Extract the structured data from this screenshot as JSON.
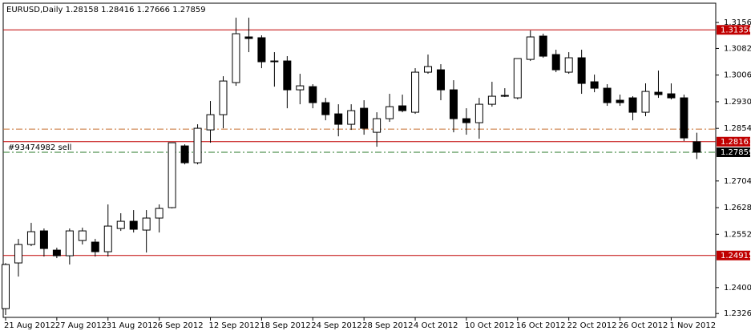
{
  "chart_data": {
    "type": "candlestick",
    "title": "EURUSD,Daily  1.28158 1.28416 1.27666 1.27859",
    "categories": [
      "21 Aug 2012",
      null,
      null,
      null,
      "27 Aug 2012",
      null,
      null,
      null,
      "31 Aug 2012",
      null,
      null,
      null,
      "6 Sep 2012",
      null,
      null,
      null,
      "12 Sep 2012",
      null,
      null,
      null,
      "18 Sep 2012",
      null,
      null,
      null,
      "24 Sep 2012",
      null,
      null,
      null,
      "28 Sep 2012",
      null,
      null,
      null,
      "4 Oct 2012",
      null,
      null,
      null,
      "10 Oct 2012",
      null,
      null,
      null,
      "16 Oct 2012",
      null,
      null,
      null,
      "22 Oct 2012",
      null,
      null,
      null,
      "26 Oct 2012",
      null,
      null,
      null,
      "1 Nov 2012",
      null,
      null
    ],
    "open": [
      1.234,
      1.24703,
      1.25228,
      1.25617,
      1.25068,
      1.24908,
      1.25342,
      1.25297,
      1.25023,
      1.25685,
      1.25891,
      1.2564,
      1.25983,
      1.2628,
      1.2804,
      1.2756,
      1.28497,
      1.28931,
      1.29846,
      1.31149,
      1.31126,
      1.30463,
      1.30463,
      1.2964,
      1.29731,
      1.29274,
      1.28954,
      1.28657,
      1.29114,
      1.28428,
      1.28817,
      1.29183,
      1.29,
      1.30143,
      1.30211,
      1.2964,
      1.28817,
      1.28703,
      1.29228,
      1.29457,
      1.29411,
      1.30508,
      1.31172,
      1.30646,
      1.30143,
      1.30554,
      1.29869,
      1.29686,
      1.29343,
      1.29411,
      1.29,
      1.29571,
      1.29526,
      1.29411,
      1.28158
    ],
    "high": [
      1.247,
      1.25388,
      1.25846,
      1.25685,
      1.25137,
      1.25685,
      1.25708,
      1.25388,
      1.26371,
      1.2612,
      1.26211,
      1.26211,
      1.26371,
      1.28131,
      1.28085,
      1.28657,
      1.2932,
      1.30028,
      1.31697,
      1.31697,
      1.31194,
      1.30714,
      1.306,
      1.30097,
      1.298,
      1.29411,
      1.29228,
      1.29228,
      1.29343,
      1.29,
      1.29526,
      1.29503,
      1.30257,
      1.30646,
      1.30371,
      1.29914,
      1.29114,
      1.29411,
      1.29869,
      1.29686,
      1.30531,
      1.31331,
      1.3124,
      1.30783,
      1.30714,
      1.30783,
      1.30074,
      1.298,
      1.29503,
      1.29457,
      1.29823,
      1.30189,
      1.29823,
      1.29503,
      1.28416
    ],
    "low": [
      1.2322,
      1.24314,
      1.25183,
      1.24885,
      1.2484,
      1.24657,
      1.25228,
      1.24885,
      1.24885,
      1.25617,
      1.25571,
      1.25,
      1.25571,
      1.26257,
      1.27514,
      1.27514,
      1.28131,
      1.28543,
      1.29754,
      1.30714,
      1.30257,
      1.29731,
      1.29114,
      1.29228,
      1.29114,
      1.28771,
      1.28314,
      1.28497,
      1.2836,
      1.28017,
      1.28726,
      1.29,
      1.28954,
      1.30097,
      1.29343,
      1.28428,
      1.2836,
      1.28246,
      1.2916,
      1.29434,
      1.29366,
      1.30463,
      1.30554,
      1.30143,
      1.30097,
      1.29526,
      1.29571,
      1.29183,
      1.29183,
      1.28771,
      1.28886,
      1.29411,
      1.29366,
      1.28177,
      1.27666
    ],
    "close": [
      1.24657,
      1.25228,
      1.25594,
      1.25114,
      1.24908,
      1.25617,
      1.25617,
      1.25023,
      1.25754,
      1.25891,
      1.25663,
      1.25983,
      1.26257,
      1.28131,
      1.2756,
      1.28543,
      1.28931,
      1.29891,
      1.3124,
      1.31103,
      1.3044,
      1.3044,
      1.2964,
      1.29754,
      1.29274,
      1.28931,
      1.28657,
      1.29046,
      1.28543,
      1.28817,
      1.2916,
      1.29046,
      1.30143,
      1.30303,
      1.2964,
      1.28817,
      1.28703,
      1.29228,
      1.29457,
      1.2948,
      1.30531,
      1.31149,
      1.306,
      1.30211,
      1.30554,
      1.29823,
      1.29686,
      1.29274,
      1.29274,
      1.29,
      1.29594,
      1.29503,
      1.29411,
      1.28268,
      1.27859
    ],
    "up_color": "#ffffff",
    "down_color": "#000000",
    "ylim": [
      1.2315,
      1.3211
    ],
    "yticks": [
      {
        "value": 1.3156,
        "label": "1.31560"
      },
      {
        "value": 1.3082,
        "label": "1.30820"
      },
      {
        "value": 1.3006,
        "label": "1.30060"
      },
      {
        "value": 1.293,
        "label": "1.29300"
      },
      {
        "value": 1.2854,
        "label": "1.28540"
      },
      {
        "value": 1.2704,
        "label": "1.27040"
      },
      {
        "value": 1.2628,
        "label": "1.26280"
      },
      {
        "value": 1.2552,
        "label": "1.25520"
      },
      {
        "value": 1.24,
        "label": "1.24000"
      },
      {
        "value": 1.2326,
        "label": "1.23260"
      }
    ],
    "levels": [
      {
        "value": 1.3135,
        "label": "1.31350",
        "color": "#c00000",
        "style": "solid",
        "tag_color": "#c00000"
      },
      {
        "value": 1.2852,
        "color": "#c87030",
        "style": "dashdot"
      },
      {
        "value": 1.28161,
        "color": "#c00000",
        "style": "solid",
        "tag_color": "#c00000"
      },
      {
        "value": 1.27859,
        "color": "#2a7a2a",
        "style": "dashdot",
        "tag_color": "#000000",
        "text": "#93474982 sell"
      },
      {
        "value": 1.24915,
        "color": "#c00000",
        "style": "solid",
        "tag_color": "#c00000"
      }
    ]
  }
}
